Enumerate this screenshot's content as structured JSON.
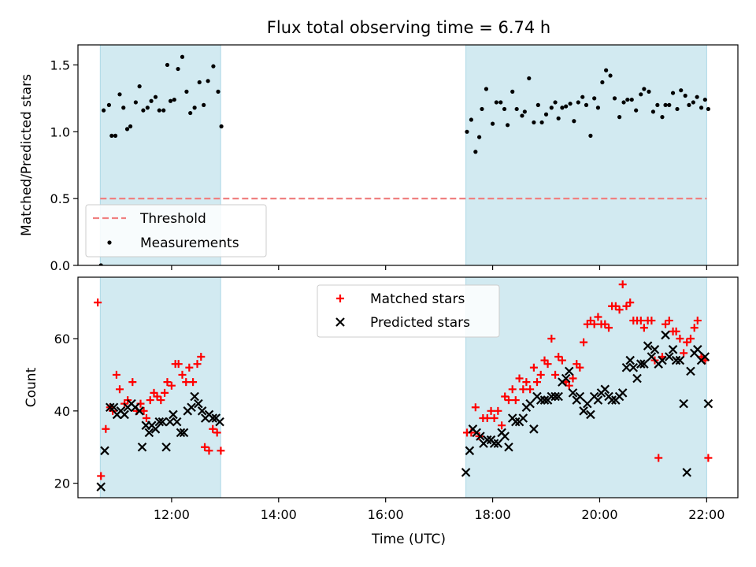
{
  "chart_data": {
    "type": "scatter",
    "title": "Flux total observing time = 6.74 h",
    "xlabel": "Time (UTC)",
    "x_unit": "hours UTC",
    "xlim": [
      "10:15",
      "22:35"
    ],
    "x_ticks": [
      "12:00",
      "14:00",
      "16:00",
      "18:00",
      "20:00",
      "22:00"
    ],
    "shaded_intervals": [
      [
        "10:40",
        "12:55"
      ],
      [
        "17:30",
        "22:00"
      ]
    ],
    "shade_color": "#add8e6",
    "panels": [
      {
        "name": "ratio",
        "ylabel": "Matched/Predicted stars",
        "ylim": [
          0,
          1.65
        ],
        "y_ticks": [
          "0.0",
          "0.5",
          "1.0",
          "1.5"
        ],
        "legend_position": "lower-left",
        "threshold": {
          "name": "Threshold",
          "y": 0.5,
          "x_range": [
            "10:40",
            "22:00"
          ],
          "color": "#f08080",
          "style": "dashed"
        },
        "series": [
          {
            "name": "Measurements",
            "marker": "dot",
            "color": "#000000",
            "x": [
              10.68,
              10.73,
              10.83,
              10.88,
              10.95,
              11.03,
              11.1,
              11.17,
              11.23,
              11.33,
              11.4,
              11.47,
              11.55,
              11.62,
              11.7,
              11.77,
              11.85,
              11.92,
              11.98,
              12.05,
              12.12,
              12.2,
              12.28,
              12.35,
              12.43,
              12.52,
              12.6,
              12.68,
              12.78,
              12.87,
              12.93,
              17.52,
              17.6,
              17.68,
              17.75,
              17.8,
              17.88,
              18.0,
              18.07,
              18.15,
              18.22,
              18.28,
              18.37,
              18.45,
              18.55,
              18.6,
              18.68,
              18.77,
              18.85,
              18.92,
              19.0,
              19.1,
              19.17,
              19.23,
              19.3,
              19.37,
              19.45,
              19.52,
              19.6,
              19.68,
              19.75,
              19.83,
              19.9,
              19.97,
              20.05,
              20.12,
              20.2,
              20.28,
              20.37,
              20.45,
              20.52,
              20.6,
              20.68,
              20.77,
              20.83,
              20.92,
              21.0,
              21.08,
              21.17,
              21.23,
              21.3,
              21.37,
              21.45,
              21.52,
              21.6,
              21.67,
              21.75,
              21.82,
              21.9,
              21.97,
              22.03
            ],
            "y": [
              0.0,
              1.16,
              1.2,
              0.97,
              0.97,
              1.28,
              1.18,
              1.02,
              1.04,
              1.22,
              1.34,
              1.16,
              1.18,
              1.23,
              1.26,
              1.16,
              1.16,
              1.5,
              1.23,
              1.24,
              1.47,
              1.56,
              1.3,
              1.14,
              1.18,
              1.37,
              1.2,
              1.38,
              1.49,
              1.3,
              1.04,
              1.0,
              1.09,
              0.85,
              0.96,
              1.17,
              1.32,
              1.06,
              1.22,
              1.22,
              1.17,
              1.05,
              1.3,
              1.17,
              1.12,
              1.15,
              1.4,
              1.07,
              1.2,
              1.07,
              1.13,
              1.18,
              1.22,
              1.1,
              1.18,
              1.19,
              1.21,
              1.08,
              1.22,
              1.26,
              1.2,
              0.97,
              1.25,
              1.18,
              1.37,
              1.46,
              1.42,
              1.25,
              1.11,
              1.22,
              1.24,
              1.24,
              1.16,
              1.28,
              1.32,
              1.3,
              1.15,
              1.2,
              1.11,
              1.2,
              1.2,
              1.29,
              1.17,
              1.31,
              1.27,
              1.2,
              1.22,
              1.26,
              1.18,
              1.24,
              1.17
            ]
          }
        ]
      },
      {
        "name": "count",
        "ylabel": "Count",
        "ylim": [
          16,
          77
        ],
        "y_ticks": [
          "20",
          "40",
          "60"
        ],
        "legend_position": "top-center",
        "series": [
          {
            "name": "Matched stars",
            "marker": "plus",
            "color": "#ff0000",
            "x": [
              10.62,
              10.68,
              10.77,
              10.85,
              10.9,
              10.97,
              11.03,
              11.12,
              11.18,
              11.27,
              11.35,
              11.42,
              11.48,
              11.53,
              11.6,
              11.67,
              11.73,
              11.8,
              11.87,
              11.92,
              12.0,
              12.07,
              12.13,
              12.2,
              12.27,
              12.33,
              12.4,
              12.48,
              12.55,
              12.62,
              12.7,
              12.77,
              12.85,
              12.92,
              17.52,
              17.6,
              17.68,
              17.75,
              17.82,
              17.9,
              17.97,
              18.03,
              18.1,
              18.17,
              18.23,
              18.3,
              18.37,
              18.43,
              18.5,
              18.57,
              18.63,
              18.7,
              18.77,
              18.83,
              18.9,
              18.97,
              19.03,
              19.1,
              19.17,
              19.23,
              19.3,
              19.37,
              19.43,
              19.5,
              19.57,
              19.63,
              19.7,
              19.77,
              19.83,
              19.9,
              19.97,
              20.03,
              20.1,
              20.17,
              20.23,
              20.3,
              20.37,
              20.43,
              20.5,
              20.57,
              20.63,
              20.7,
              20.77,
              20.83,
              20.9,
              20.97,
              21.03,
              21.1,
              21.17,
              21.23,
              21.3,
              21.37,
              21.43,
              21.5,
              21.57,
              21.63,
              21.7,
              21.77,
              21.83,
              21.9,
              21.97,
              22.03
            ],
            "y": [
              70,
              22,
              35,
              41,
              40,
              50,
              46,
              42,
              43,
              48,
              40,
              42,
              40,
              38,
              43,
              45,
              44,
              43,
              45,
              48,
              47,
              53,
              53,
              50,
              48,
              52,
              48,
              53,
              55,
              30,
              29,
              35,
              34,
              29,
              34,
              34,
              41,
              33,
              38,
              38,
              40,
              38,
              40,
              36,
              44,
              43,
              46,
              43,
              49,
              46,
              48,
              46,
              52,
              48,
              50,
              54,
              53,
              60,
              50,
              55,
              54,
              48,
              47,
              49,
              53,
              52,
              59,
              64,
              65,
              64,
              66,
              64,
              64,
              63,
              69,
              69,
              68,
              75,
              69,
              70,
              65,
              65,
              65,
              63,
              65,
              65,
              54,
              27,
              55,
              64,
              65,
              62,
              62,
              60,
              56,
              59,
              60,
              63,
              65,
              55,
              54,
              27
            ],
            "note_x_order_split": true
          },
          {
            "name": "Predicted stars",
            "marker": "x",
            "color": "#000000",
            "x": [
              10.68,
              10.75,
              10.85,
              10.92,
              10.98,
              11.05,
              11.12,
              11.18,
              11.25,
              11.32,
              11.4,
              11.45,
              11.52,
              11.58,
              11.63,
              11.7,
              11.77,
              11.83,
              11.9,
              11.97,
              12.03,
              12.1,
              12.17,
              12.23,
              12.3,
              12.37,
              12.43,
              12.5,
              12.57,
              12.63,
              12.7,
              12.77,
              12.83,
              12.9,
              17.5,
              17.57,
              17.63,
              17.7,
              17.77,
              17.83,
              17.9,
              17.97,
              18.03,
              18.1,
              18.17,
              18.23,
              18.3,
              18.37,
              18.43,
              18.5,
              18.57,
              18.63,
              18.7,
              18.77,
              18.83,
              18.9,
              18.97,
              19.03,
              19.1,
              19.17,
              19.23,
              19.3,
              19.37,
              19.43,
              19.5,
              19.57,
              19.63,
              19.7,
              19.77,
              19.83,
              19.9,
              19.97,
              20.03,
              20.1,
              20.17,
              20.23,
              20.3,
              20.37,
              20.43,
              20.5,
              20.57,
              20.63,
              20.7,
              20.77,
              20.83,
              20.9,
              20.97,
              21.03,
              21.1,
              21.17,
              21.23,
              21.3,
              21.37,
              21.43,
              21.5,
              21.57,
              21.63,
              21.7,
              21.77,
              21.83,
              21.9,
              21.97,
              22.03
            ],
            "y": [
              19,
              29,
              41,
              41,
              39,
              40,
              39,
              41,
              42,
              41,
              40,
              30,
              36,
              34,
              36,
              35,
              37,
              37,
              30,
              37,
              39,
              37,
              34,
              34,
              40,
              41,
              44,
              42,
              40,
              38,
              39,
              38,
              38,
              37,
              23,
              29,
              35,
              34,
              33,
              31,
              32,
              32,
              31,
              31,
              34,
              33,
              30,
              38,
              37,
              37,
              38,
              41,
              42,
              35,
              44,
              43,
              43,
              43,
              44,
              44,
              44,
              48,
              49,
              51,
              45,
              43,
              44,
              40,
              42,
              39,
              44,
              43,
              45,
              46,
              44,
              43,
              43,
              44,
              45,
              52,
              54,
              52,
              49,
              53,
              53,
              58,
              55,
              57,
              53,
              54,
              61,
              55,
              57,
              54,
              54,
              42,
              23,
              51,
              56,
              57,
              54,
              55,
              42
            ],
            "note_x_order_split": true
          }
        ]
      }
    ]
  }
}
